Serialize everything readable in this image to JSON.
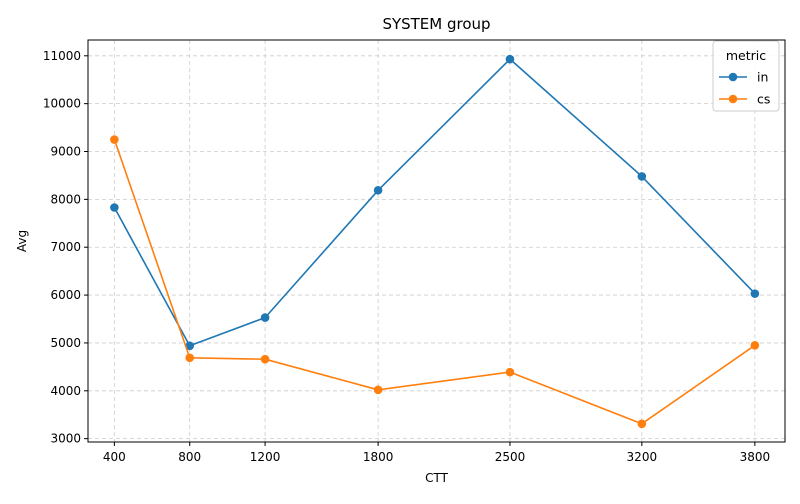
{
  "chart_data": {
    "type": "line",
    "title": "SYSTEM group",
    "xlabel": "CTT",
    "ylabel": "Avg",
    "x": [
      400,
      800,
      1200,
      1800,
      2500,
      3200,
      3800
    ],
    "x_tick_labels": [
      "400",
      "800",
      "1200",
      "1800",
      "2500",
      "3200",
      "3800"
    ],
    "y_ticks": [
      3000,
      4000,
      5000,
      6000,
      7000,
      8000,
      9000,
      10000,
      11000
    ],
    "y_tick_labels": [
      "3000",
      "4000",
      "5000",
      "6000",
      "7000",
      "8000",
      "9000",
      "10000",
      "11000"
    ],
    "xlim": [
      260,
      3960
    ],
    "ylim": [
      2930,
      11330
    ],
    "grid": true,
    "legend": {
      "title": "metric",
      "placement": "top-right"
    },
    "series": [
      {
        "name": "in",
        "color": "#1f77b4",
        "values": [
          7830,
          4940,
          5530,
          8190,
          10930,
          8480,
          6030
        ]
      },
      {
        "name": "cs",
        "color": "#ff7f0e",
        "values": [
          9250,
          4690,
          4660,
          4020,
          4390,
          3310,
          4950
        ]
      }
    ]
  }
}
